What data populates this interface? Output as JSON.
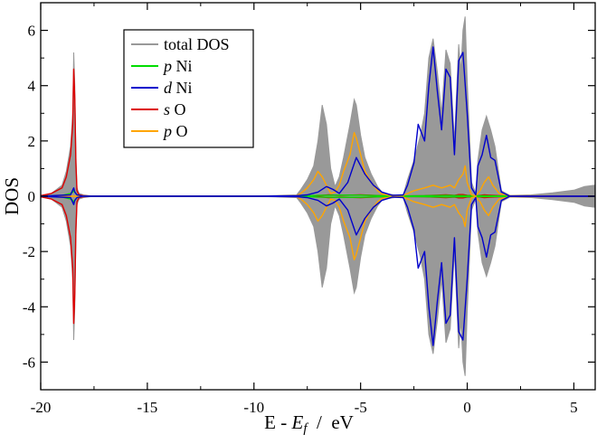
{
  "chart_data": {
    "type": "line",
    "xlabel": {
      "pre": "E - ",
      "italic": "E",
      "sub": "f",
      "post": "  /  eV"
    },
    "ylabel": "DOS",
    "xlim": [
      -20,
      6
    ],
    "ylim": [
      -7,
      7
    ],
    "xticks": [
      -20,
      -15,
      -10,
      -5,
      0,
      5
    ],
    "yticks": [
      -6,
      -4,
      -2,
      0,
      2,
      4,
      6
    ],
    "grid": false,
    "legend_position": "top-left",
    "legend": [
      {
        "italic": "",
        "text": "total DOS",
        "color": "#999999"
      },
      {
        "italic": "p",
        "text": " Ni",
        "color": "#00dd00"
      },
      {
        "italic": "d",
        "text": " Ni",
        "color": "#0000cc"
      },
      {
        "italic": "s",
        "text": " O",
        "color": "#dd0000"
      },
      {
        "italic": "p",
        "text": " O",
        "color": "#ffa500"
      }
    ],
    "series": [
      {
        "key": "total",
        "kind": "filled",
        "color": "#999999",
        "x": [
          -20,
          -19.5,
          -19.0,
          -18.8,
          -18.6,
          -18.5,
          -18.45,
          -18.4,
          -18.35,
          -18.3,
          -18.2,
          -18.0,
          -17.5,
          -10,
          -8.0,
          -7.8,
          -7.5,
          -7.2,
          -7.0,
          -6.8,
          -6.6,
          -6.4,
          -6.2,
          -6.0,
          -5.8,
          -5.5,
          -5.3,
          -5.2,
          -5.0,
          -4.8,
          -4.5,
          -4.2,
          -4.0,
          -3.7,
          -3.4,
          -3.0,
          -2.8,
          -2.5,
          -2.2,
          -2.0,
          -1.8,
          -1.6,
          -1.4,
          -1.2,
          -1.0,
          -0.8,
          -0.6,
          -0.4,
          -0.3,
          -0.2,
          -0.1,
          0.0,
          0.2,
          0.4,
          0.5,
          0.7,
          0.9,
          1.1,
          1.3,
          1.6,
          2.0,
          3.0,
          4.0,
          5.0,
          5.5,
          6.0
        ],
        "y": [
          0.02,
          0.1,
          0.4,
          0.9,
          1.8,
          3.0,
          5.2,
          4.0,
          1.5,
          0.3,
          0.1,
          0.05,
          0.0,
          0.0,
          0.05,
          0.25,
          0.6,
          1.1,
          2.0,
          3.3,
          2.6,
          1.0,
          0.35,
          0.7,
          1.4,
          2.6,
          3.5,
          3.3,
          2.2,
          1.4,
          0.8,
          0.35,
          0.15,
          0.08,
          0.05,
          0.05,
          0.6,
          1.3,
          2.2,
          3.0,
          5.0,
          5.7,
          4.5,
          3.0,
          5.3,
          4.8,
          2.0,
          5.5,
          4.5,
          6.0,
          6.5,
          4.2,
          0.5,
          0.1,
          1.3,
          2.4,
          2.9,
          2.4,
          1.8,
          0.2,
          0.03,
          0.05,
          0.12,
          0.22,
          0.35,
          0.4
        ]
      },
      {
        "key": "sO",
        "kind": "line",
        "color": "#dd0000",
        "x": [
          -20,
          -19.5,
          -19.0,
          -18.8,
          -18.6,
          -18.5,
          -18.45,
          -18.4,
          -18.35,
          -18.3,
          -18.2,
          -18.0,
          -17.5,
          -10,
          -8.0,
          -7.0,
          -6.5,
          -6.0,
          -5.0,
          -4.0,
          -3.0,
          -2.0,
          -1.0,
          -0.6,
          -0.4,
          -0.2,
          0.0,
          0.5,
          0.8,
          1.0,
          2.0,
          6.0
        ],
        "y": [
          0.02,
          0.1,
          0.3,
          0.7,
          1.5,
          2.6,
          4.6,
          3.5,
          1.2,
          0.2,
          0.05,
          0.02,
          0.0,
          0.0,
          0.0,
          0.02,
          0.05,
          0.03,
          0.05,
          0.02,
          0.01,
          0.02,
          0.05,
          0.03,
          0.06,
          0.06,
          0.03,
          0.02,
          0.05,
          0.04,
          0.0,
          0.0
        ]
      },
      {
        "key": "pNi",
        "kind": "line",
        "color": "#00dd00",
        "x": [
          -20,
          -19.0,
          -18.6,
          -18.5,
          -18.45,
          -18.4,
          -18.3,
          -18.0,
          -10,
          -8.0,
          -7.0,
          -6.0,
          -5.0,
          -4.0,
          -3.0,
          -2.0,
          -1.0,
          0.0,
          0.8,
          1.5,
          6.0
        ],
        "y": [
          0.0,
          0.03,
          0.1,
          0.15,
          0.2,
          0.15,
          0.05,
          0.0,
          0.0,
          0.0,
          0.03,
          0.04,
          0.04,
          0.02,
          0.01,
          0.02,
          0.03,
          0.02,
          0.02,
          0.01,
          0.0
        ]
      },
      {
        "key": "pO",
        "kind": "line",
        "color": "#ffa500",
        "x": [
          -20,
          -18.0,
          -10,
          -8.0,
          -7.8,
          -7.5,
          -7.2,
          -7.0,
          -6.8,
          -6.6,
          -6.4,
          -6.2,
          -6.0,
          -5.8,
          -5.5,
          -5.3,
          -5.2,
          -5.0,
          -4.8,
          -4.5,
          -4.2,
          -4.0,
          -3.5,
          -3.0,
          -2.5,
          -2.0,
          -1.6,
          -1.2,
          -1.0,
          -0.8,
          -0.6,
          -0.4,
          -0.2,
          -0.1,
          0.0,
          0.2,
          0.4,
          0.6,
          0.8,
          1.0,
          1.2,
          1.5,
          2.0,
          6.0
        ],
        "y": [
          0.0,
          0.0,
          0.0,
          0.02,
          0.1,
          0.3,
          0.6,
          0.9,
          0.7,
          0.4,
          0.1,
          0.15,
          0.4,
          0.9,
          1.5,
          2.3,
          2.1,
          1.5,
          0.9,
          0.5,
          0.2,
          0.08,
          0.02,
          0.03,
          0.2,
          0.3,
          0.4,
          0.3,
          0.35,
          0.4,
          0.3,
          0.6,
          0.8,
          1.1,
          0.5,
          0.05,
          0.02,
          0.2,
          0.5,
          0.7,
          0.4,
          0.1,
          0.02,
          0.0
        ]
      },
      {
        "key": "dNi",
        "kind": "line",
        "color": "#0000cc",
        "x": [
          -20,
          -18.6,
          -18.45,
          -18.4,
          -18.3,
          -18.0,
          -10,
          -8.0,
          -7.5,
          -7.0,
          -6.6,
          -6.3,
          -6.0,
          -5.6,
          -5.2,
          -4.8,
          -4.4,
          -4.0,
          -3.5,
          -3.0,
          -2.8,
          -2.5,
          -2.3,
          -2.0,
          -1.8,
          -1.6,
          -1.4,
          -1.2,
          -1.0,
          -0.8,
          -0.6,
          -0.4,
          -0.2,
          0.0,
          0.2,
          0.4,
          0.5,
          0.7,
          0.9,
          1.1,
          1.3,
          1.6,
          2.0,
          6.0
        ],
        "y": [
          0.0,
          0.05,
          0.3,
          0.15,
          0.05,
          0.0,
          0.0,
          0.02,
          0.05,
          0.15,
          0.35,
          0.25,
          0.1,
          0.5,
          1.4,
          0.8,
          0.4,
          0.15,
          0.03,
          0.05,
          0.4,
          1.2,
          2.6,
          2.0,
          4.0,
          5.4,
          3.8,
          2.4,
          4.6,
          4.3,
          1.5,
          4.9,
          5.2,
          3.0,
          0.3,
          0.05,
          1.1,
          1.5,
          2.2,
          1.4,
          1.3,
          0.15,
          0.0,
          0.0
        ]
      }
    ]
  }
}
